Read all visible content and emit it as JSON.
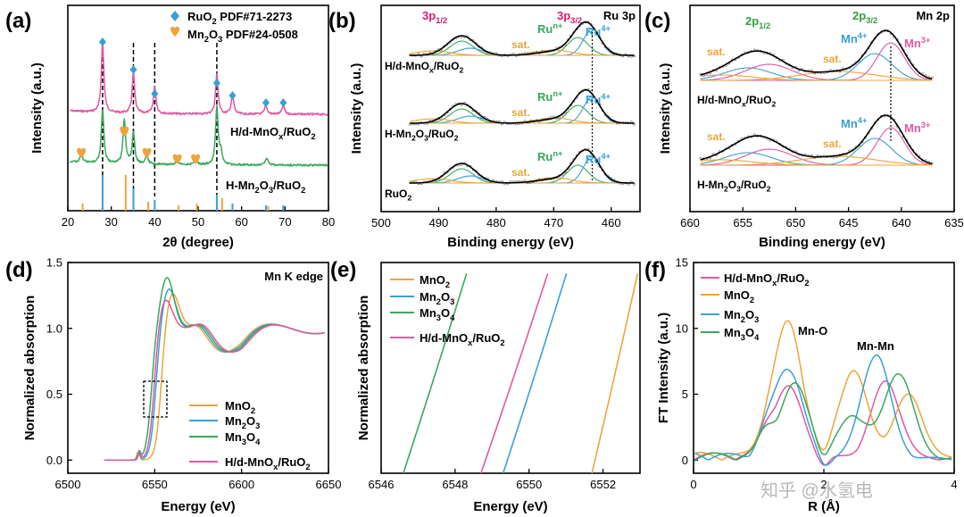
{
  "colors": {
    "pink": "#e1579f",
    "green": "#3aa85b",
    "blue": "#3a9fd6",
    "orange": "#eea43a",
    "navy": "#2f4a8a",
    "axis": "#000000",
    "dark_green": "#2f9e3e",
    "magenta": "#d81b72"
  },
  "watermark": "知乎 @水氢电",
  "chart_data": [
    {
      "id": "a",
      "type": "line",
      "label": "(a)",
      "xlabel": "2θ (degree)",
      "ylabel": "Intensity (a.u.)",
      "xlim": [
        20,
        80
      ],
      "xticks": [
        "20",
        "30",
        "40",
        "50",
        "60",
        "70",
        "80"
      ],
      "legend": [
        {
          "marker": "blue-diamond",
          "text": "RuO",
          "sub": "2",
          "suffix": " PDF#71-2273"
        },
        {
          "marker": "orange-heart",
          "text": "Mn",
          "sub": "2",
          "mid": "O",
          "sub2": "3",
          "suffix": " PDF#24-0508"
        }
      ],
      "series": [
        {
          "name": "H/d-MnOx/RuO2",
          "label_parts": [
            "H/d-MnO",
            "x",
            "/RuO",
            "2"
          ],
          "color": "pink",
          "peaks_2theta": [
            28.0,
            35.1,
            40.0,
            54.3,
            57.9,
            65.6,
            69.6
          ]
        },
        {
          "name": "H-Mn2O3/RuO2",
          "label_parts": [
            "H-Mn",
            "2",
            "O",
            "3",
            "/RuO",
            "2"
          ],
          "color": "green",
          "peaks_2theta": [
            23.1,
            28.0,
            33.0,
            35.1,
            38.2,
            45.2,
            49.4,
            54.3,
            55.2,
            65.8
          ]
        }
      ],
      "ref_lines": {
        "RuO2": [
          28.0,
          35.1,
          40.0,
          54.3,
          57.9,
          65.6,
          69.6
        ],
        "Mn2O3": [
          23.1,
          33.0,
          38.2,
          45.2,
          49.4,
          55.2,
          65.8
        ]
      },
      "dashed_lines_2theta": [
        28.0,
        35.1,
        40.0,
        54.3
      ]
    },
    {
      "id": "b",
      "type": "line",
      "label": "(b)",
      "title": "Ru 3p",
      "xlabel": "Binding energy (eV)",
      "ylabel": "Intensity (a.u.)",
      "xlim": [
        500,
        455
      ],
      "xticks": [
        "500",
        "490",
        "480",
        "470",
        "460"
      ],
      "peaks_eV": {
        "3p1/2": 486.0,
        "3p3/2": 463.5
      },
      "dotted_line_eV": 463.3,
      "annotations": {
        "p12": "3p",
        "p12_sub": "1/2",
        "p32": "3p",
        "p32_sub": "3/2",
        "run": "Ru",
        "run_sup": "n+",
        "ru4": "Ru",
        "ru4_sup": "4+",
        "sat": "sat."
      },
      "series": [
        {
          "name": "H/d-MnOx/RuO2",
          "label_parts": [
            "H/d-MnO",
            "x",
            "/RuO",
            "2"
          ]
        },
        {
          "name": "H-Mn2O3/RuO2",
          "label_parts": [
            "H-Mn",
            "2",
            "O",
            "3",
            "/RuO",
            "2"
          ]
        },
        {
          "name": "RuO2",
          "label_parts": [
            "RuO",
            "2"
          ]
        }
      ]
    },
    {
      "id": "c",
      "type": "line",
      "label": "(c)",
      "title": "Mn 2p",
      "xlabel": "Binding energy (eV)",
      "ylabel": "Intensity (a.u.)",
      "xlim": [
        660,
        635
      ],
      "xticks": [
        "660",
        "655",
        "650",
        "645",
        "640",
        "635"
      ],
      "peaks_eV": {
        "2p1/2": 653.0,
        "2p3/2": 641.3
      },
      "dotted_line_eV": 641.0,
      "annotations": {
        "p12": "2p",
        "p12_sub": "1/2",
        "p32": "2p",
        "p32_sub": "3/2",
        "mn4": "Mn",
        "mn4_sup": "4+",
        "mn3": "Mn",
        "mn3_sup": "3+",
        "sat": "sat."
      },
      "series": [
        {
          "name": "H/d-MnOx/RuO2",
          "label_parts": [
            "H/d-MnO",
            "x",
            "/RuO",
            "2"
          ]
        },
        {
          "name": "H-Mn2O3/RuO2",
          "label_parts": [
            "H-Mn",
            "2",
            "O",
            "3",
            "/RuO",
            "2"
          ]
        }
      ]
    },
    {
      "id": "d",
      "type": "line",
      "label": "(d)",
      "title": "Mn K edge",
      "xlabel": "Energy (eV)",
      "ylabel": "Normalized absorption",
      "xlim": [
        6500,
        6650
      ],
      "ylim": [
        -0.1,
        1.5
      ],
      "xticks": [
        "6500",
        "6550",
        "6600",
        "6650"
      ],
      "yticks": [
        "0.0",
        "0.5",
        "1.0",
        "1.5"
      ],
      "series": [
        {
          "name": "MnO2",
          "label_parts": [
            "MnO",
            "2"
          ],
          "color": "orange",
          "edge": 6553.5,
          "peak": 1.28,
          "peak_x": 6560
        },
        {
          "name": "Mn2O3",
          "label_parts": [
            "Mn",
            "2",
            "O",
            "3"
          ],
          "color": "blue",
          "edge": 6550.5,
          "peak": 1.31,
          "peak_x": 6558
        },
        {
          "name": "Mn3O4",
          "label_parts": [
            "Mn",
            "3",
            "O",
            "4"
          ],
          "color": "green",
          "edge": 6548.0,
          "peak": 1.39,
          "peak_x": 6557
        },
        {
          "name": "H/d-MnOx/RuO2",
          "label_parts": [
            "H/d-MnO",
            "x",
            "/RuO",
            "2"
          ],
          "color": "pink",
          "edge": 6549.5,
          "peak": 1.23,
          "peak_x": 6556
        }
      ]
    },
    {
      "id": "e",
      "type": "line",
      "label": "(e)",
      "xlabel": "Energy (eV)",
      "ylabel": "Normalized absorption",
      "xlim": [
        6546,
        6553
      ],
      "xticks": [
        "6546",
        "6548",
        "6550",
        "6552"
      ],
      "series": [
        {
          "name": "MnO2",
          "label_parts": [
            "MnO",
            "2"
          ],
          "color": "orange",
          "x": [
            6551.7,
            6553.0
          ]
        },
        {
          "name": "Mn2O3",
          "label_parts": [
            "Mn",
            "2",
            "O",
            "3"
          ],
          "color": "blue",
          "x": [
            6549.3,
            6551.1
          ]
        },
        {
          "name": "Mn3O4",
          "label_parts": [
            "Mn",
            "3",
            "O",
            "4"
          ],
          "color": "green",
          "x": [
            6546.6,
            6548.4
          ]
        },
        {
          "name": "H/d-MnOx/RuO2",
          "label_parts": [
            "H/d-MnO",
            "x",
            "/RuO",
            "2"
          ],
          "color": "pink",
          "x": [
            6548.7,
            6550.6
          ]
        }
      ]
    },
    {
      "id": "f",
      "type": "line",
      "label": "(f)",
      "xlabel": "R (Å)",
      "ylabel": "FT Intensity (a.u.)",
      "xlim": [
        0,
        4
      ],
      "ylim": [
        -1,
        15
      ],
      "xticks": [
        "0",
        "2",
        "4"
      ],
      "yticks": [
        "0",
        "5",
        "10",
        "15"
      ],
      "annotations": {
        "mno": "Mn-O",
        "mnmn": "Mn-Mn"
      },
      "series": [
        {
          "name": "H/d-MnOx/RuO2",
          "label_parts": [
            "H/d-MnO",
            "x",
            "/RuO",
            "2"
          ],
          "color": "pink",
          "peaks": [
            [
              1.45,
              5.3
            ],
            [
              2.95,
              5.8
            ]
          ]
        },
        {
          "name": "MnO2",
          "label_parts": [
            "MnO",
            "2"
          ],
          "color": "orange",
          "peaks": [
            [
              1.45,
              10.2
            ],
            [
              2.45,
              6.6
            ],
            [
              3.3,
              4.8
            ]
          ]
        },
        {
          "name": "Mn2O3",
          "label_parts": [
            "Mn",
            "2",
            "O",
            "3"
          ],
          "color": "blue",
          "peaks": [
            [
              1.45,
              6.8
            ],
            [
              2.8,
              7.9
            ]
          ]
        },
        {
          "name": "Mn3O4",
          "label_parts": [
            "Mn",
            "3",
            "O",
            "4"
          ],
          "color": "green",
          "peaks": [
            [
              1.55,
              5.5
            ],
            [
              2.45,
              3.2
            ],
            [
              3.15,
              6.5
            ]
          ]
        }
      ]
    }
  ]
}
